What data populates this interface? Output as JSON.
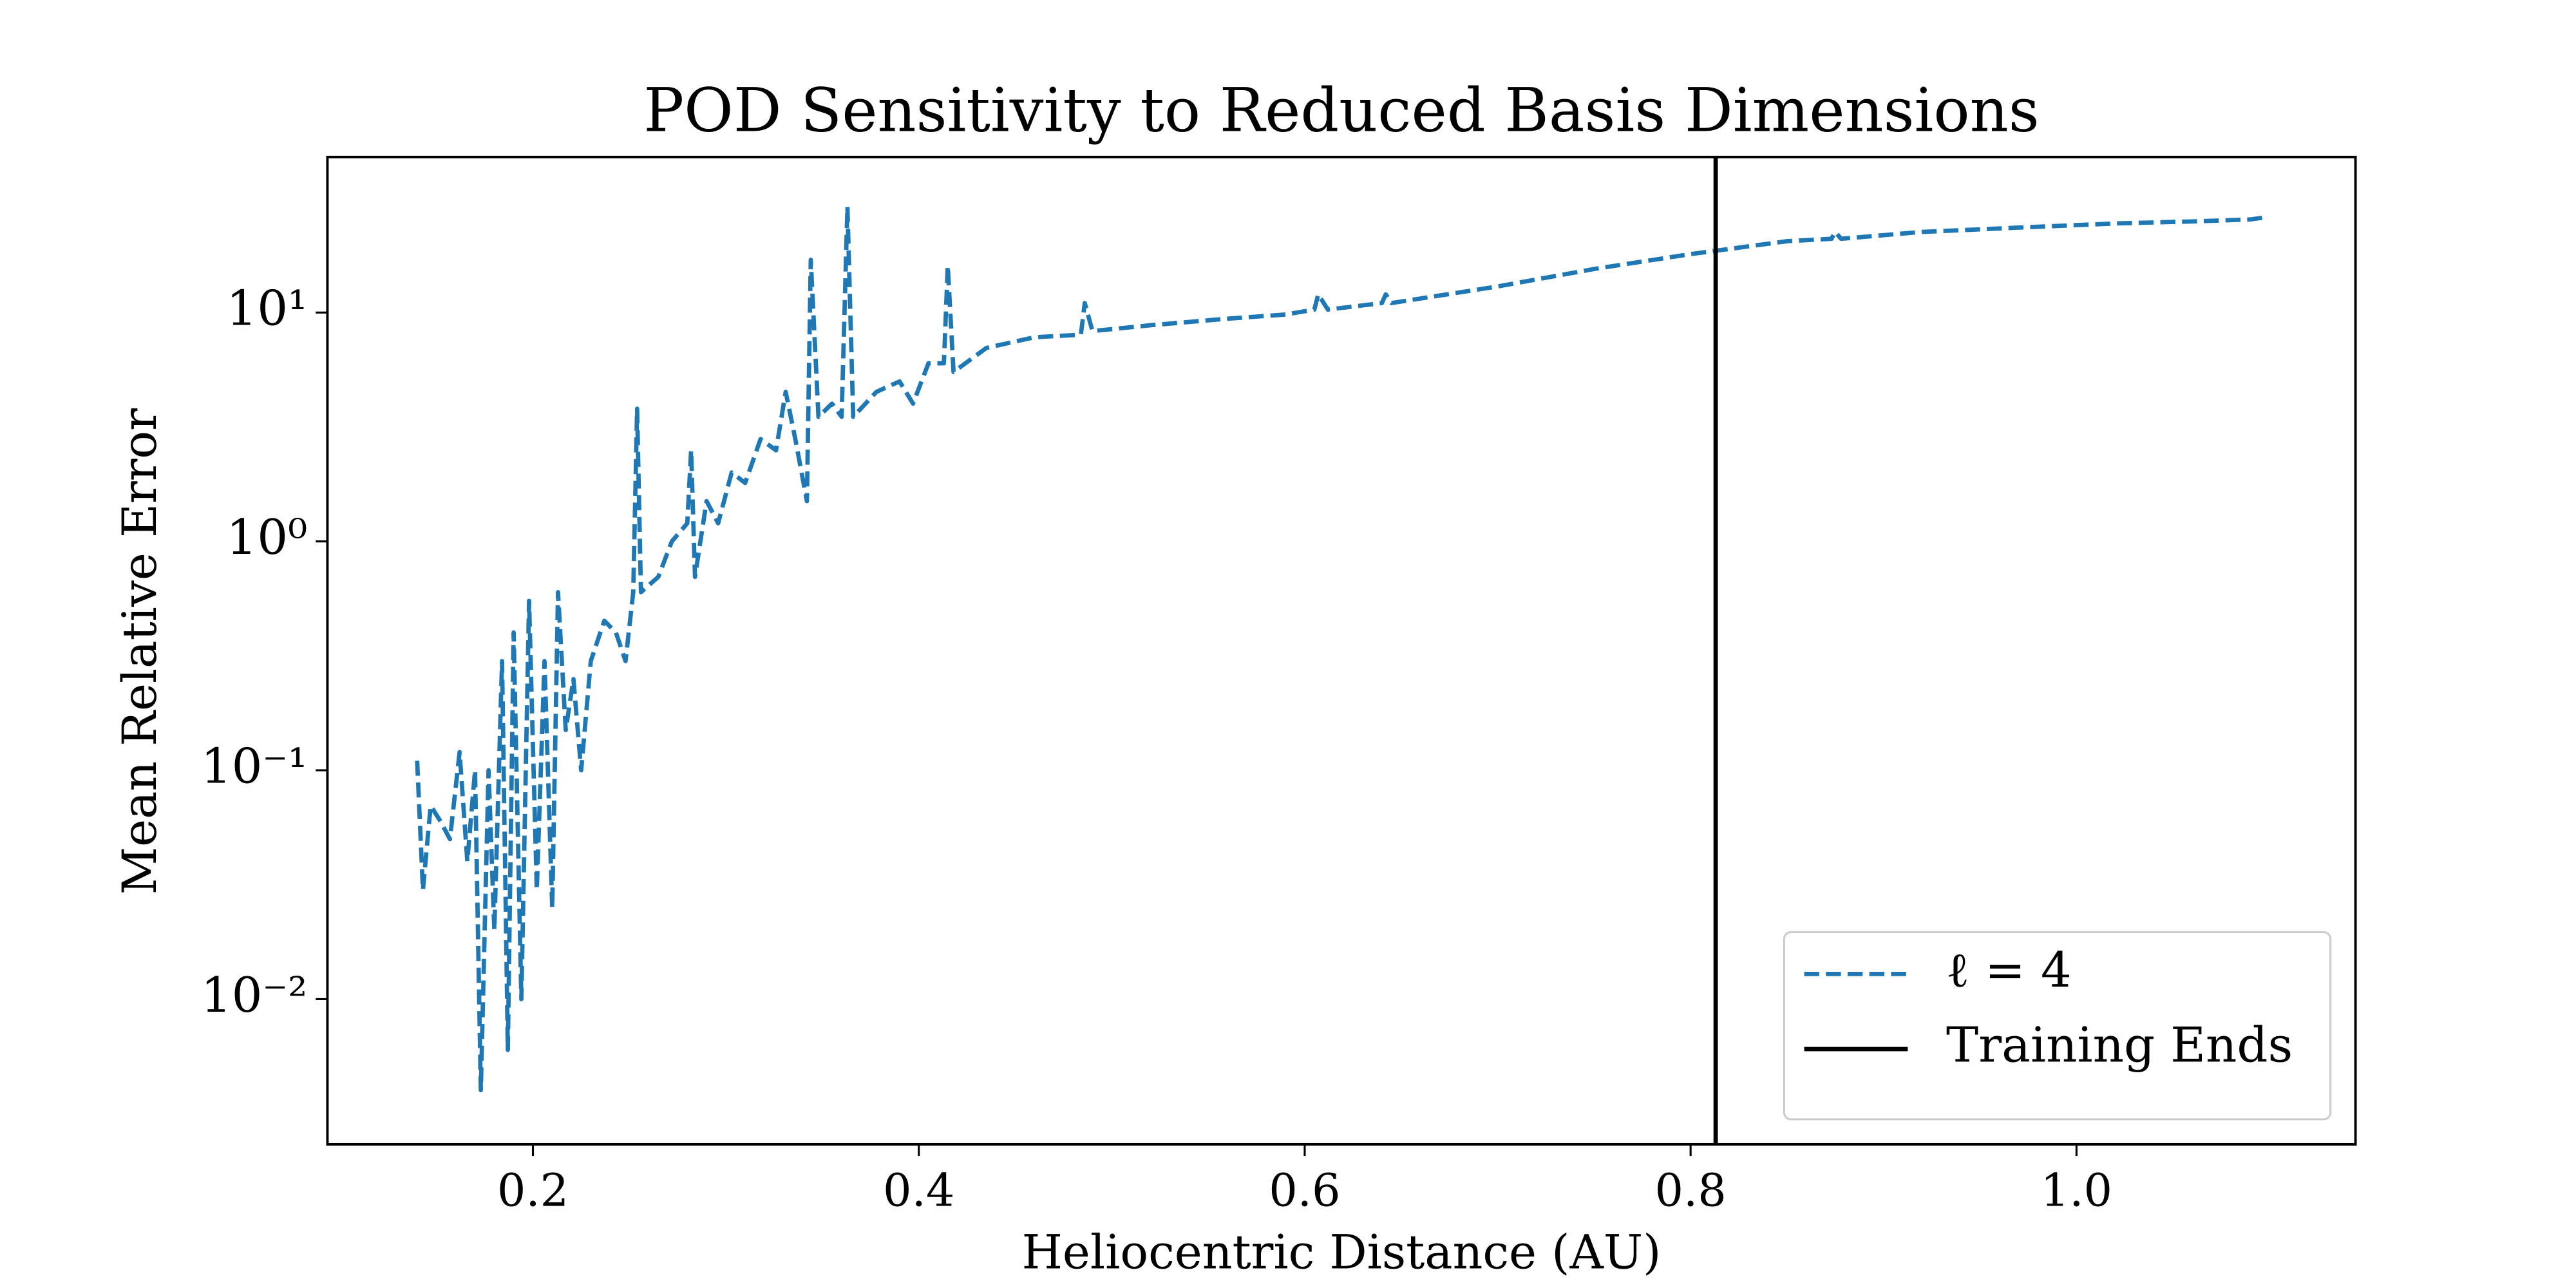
{
  "chart_data": {
    "type": "line",
    "title": "POD Sensitivity to Reduced Basis Dimensions",
    "xlabel": "Heliocentric Distance (AU)",
    "ylabel": "Mean Relative Error",
    "yscale": "log",
    "grid": false,
    "legend": "lower right",
    "xlim": [
      0.0935,
      1.1446
    ],
    "ylim": [
      0.00232,
      47.8
    ],
    "xticks": [
      0.2,
      0.4,
      0.6,
      0.8,
      {
        "value": 1,
        "label": "1.0"
      }
    ],
    "yticks": [
      {
        "value": 0.01,
        "label": "10⁻²"
      },
      {
        "value": 0.1,
        "label": "10⁻¹"
      },
      {
        "value": 1,
        "label": "10⁰"
      },
      {
        "value": 10,
        "label": "10¹"
      }
    ],
    "x": [
      0.14,
      0.143,
      0.147,
      0.152,
      0.157,
      0.162,
      0.166,
      0.17,
      0.173,
      0.177,
      0.18,
      0.184,
      0.187,
      0.19,
      0.194,
      0.198,
      0.202,
      0.206,
      0.21,
      0.213,
      0.217,
      0.221,
      0.225,
      0.23,
      0.237,
      0.243,
      0.248,
      0.252,
      0.254,
      0.256,
      0.265,
      0.272,
      0.28,
      0.282,
      0.284,
      0.29,
      0.296,
      0.303,
      0.31,
      0.318,
      0.326,
      0.331,
      0.336,
      0.342,
      0.344,
      0.348,
      0.355,
      0.36,
      0.363,
      0.366,
      0.378,
      0.39,
      0.397,
      0.405,
      0.413,
      0.415,
      0.418,
      0.435,
      0.46,
      0.484,
      0.486,
      0.49,
      0.52,
      0.56,
      0.59,
      0.605,
      0.607,
      0.612,
      0.64,
      0.642,
      0.645,
      0.7,
      0.75,
      0.8,
      0.85,
      0.873,
      0.875,
      0.878,
      0.92,
      0.97,
      1.02,
      1.06,
      1.09,
      1.097
    ],
    "series": [
      {
        "name": "ℓ = 4",
        "color": "#1f77b4",
        "values": [
          0.11,
          0.03,
          0.07,
          0.06,
          0.05,
          0.12,
          0.04,
          0.1,
          0.004,
          0.1,
          0.02,
          0.3,
          0.006,
          0.4,
          0.01,
          0.55,
          0.03,
          0.3,
          0.025,
          0.6,
          0.15,
          0.25,
          0.1,
          0.3,
          0.45,
          0.4,
          0.3,
          0.6,
          3.8,
          0.6,
          0.7,
          1.0,
          1.2,
          2.5,
          0.7,
          1.5,
          1.2,
          2.0,
          1.8,
          2.8,
          2.5,
          4.5,
          2.8,
          1.5,
          17,
          3.5,
          4.0,
          3.5,
          29,
          3.5,
          4.5,
          5.0,
          4.0,
          6.0,
          6.0,
          16,
          5.5,
          7.0,
          7.8,
          8.0,
          11,
          8.3,
          8.8,
          9.4,
          9.8,
          10.3,
          12,
          10.3,
          11,
          12,
          11,
          13,
          15.5,
          18,
          20.5,
          21,
          22.5,
          21,
          22.5,
          23.5,
          24.5,
          25,
          25.5,
          26
        ]
      }
    ],
    "vlines": [
      {
        "name": "Training Ends",
        "x": 0.813,
        "color": "#000000"
      }
    ]
  }
}
